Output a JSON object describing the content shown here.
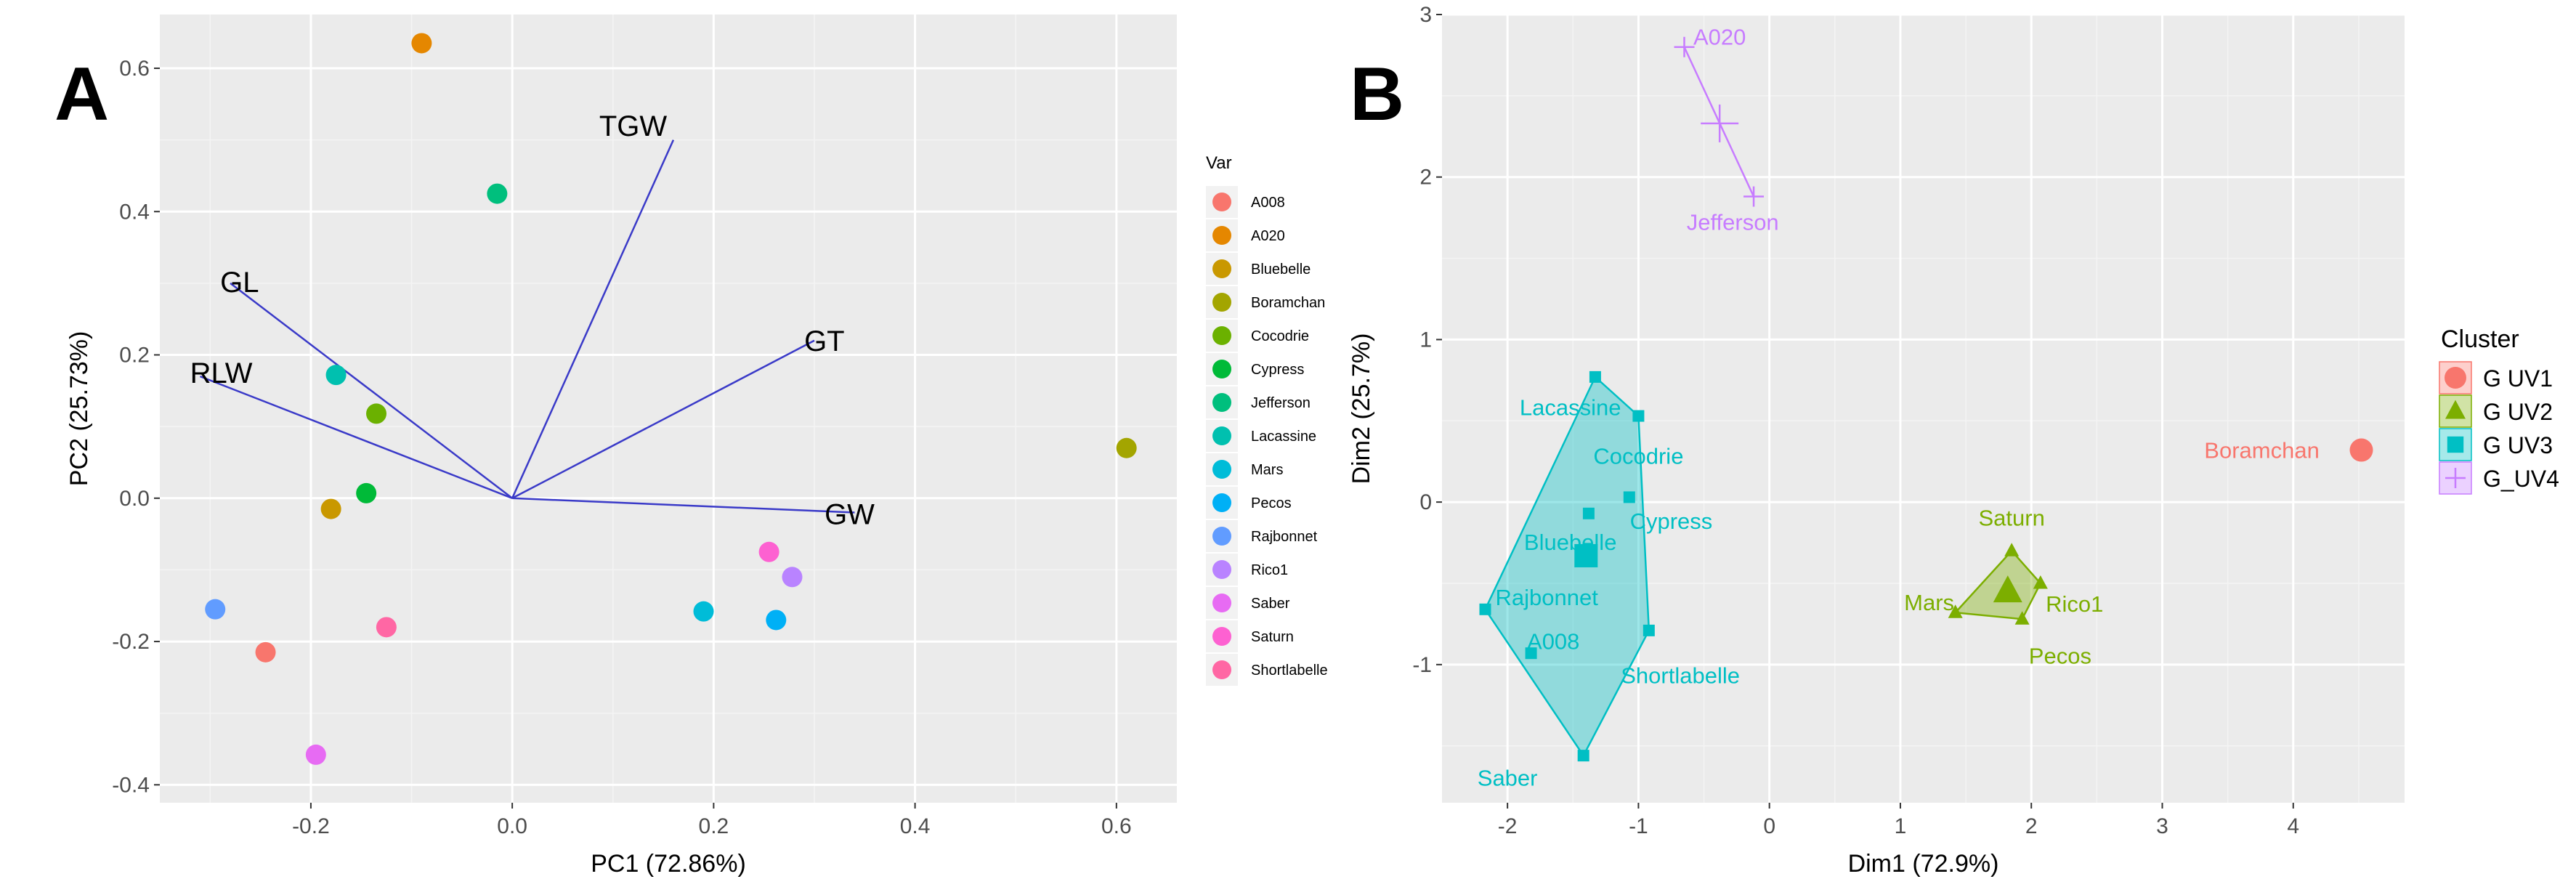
{
  "panels": {
    "a": "A",
    "b": "B"
  },
  "colors": {
    "panel_bg": "#ebebeb",
    "grid_major": "#ffffff",
    "arrow": "#3a3ac8",
    "cluster": {
      "G UV1": "#f8766d",
      "G UV2": "#7cae00",
      "G UV3": "#00bfc4",
      "G_UV4": "#c77cff"
    }
  },
  "chart_data": [
    {
      "type": "scatter",
      "panel": "A",
      "title": "",
      "xlabel": "PC1 (72.86%)",
      "ylabel": "PC2 (25.73%)",
      "xlim": [
        -0.35,
        0.66
      ],
      "ylim": [
        -0.425,
        0.675
      ],
      "xticks": [
        -0.2,
        0.0,
        0.2,
        0.4,
        0.6
      ],
      "xtick_labels": [
        "-0.2",
        "0.0",
        "0.2",
        "0.4",
        "0.6"
      ],
      "yticks": [
        -0.4,
        -0.2,
        0.0,
        0.2,
        0.4,
        0.6
      ],
      "ytick_labels": [
        "-0.4",
        "-0.2",
        "0.0",
        "0.2",
        "0.4",
        "0.6"
      ],
      "grid": true,
      "legend": {
        "title": "Var",
        "position": "right"
      },
      "points": [
        {
          "name": "A008",
          "x": -0.245,
          "y": -0.215,
          "color": "#f8766d"
        },
        {
          "name": "A020",
          "x": -0.09,
          "y": 0.635,
          "color": "#e58700"
        },
        {
          "name": "Bluebelle",
          "x": -0.18,
          "y": -0.015,
          "color": "#c99800"
        },
        {
          "name": "Boramchan",
          "x": 0.61,
          "y": 0.07,
          "color": "#a3a500"
        },
        {
          "name": "Cocodrie",
          "x": -0.135,
          "y": 0.118,
          "color": "#6bb100"
        },
        {
          "name": "Cypress",
          "x": -0.145,
          "y": 0.007,
          "color": "#00ba38"
        },
        {
          "name": "Jefferson",
          "x": -0.015,
          "y": 0.425,
          "color": "#00bf7d"
        },
        {
          "name": "Lacassine",
          "x": -0.175,
          "y": 0.172,
          "color": "#00c0af"
        },
        {
          "name": "Mars",
          "x": 0.19,
          "y": -0.158,
          "color": "#00bcd8"
        },
        {
          "name": "Pecos",
          "x": 0.262,
          "y": -0.17,
          "color": "#00b0f6"
        },
        {
          "name": "Rajbonnet",
          "x": -0.295,
          "y": -0.155,
          "color": "#619cff"
        },
        {
          "name": "Rico1",
          "x": 0.278,
          "y": -0.11,
          "color": "#b983ff"
        },
        {
          "name": "Saber",
          "x": -0.195,
          "y": -0.358,
          "color": "#e76bf3"
        },
        {
          "name": "Saturn",
          "x": 0.255,
          "y": -0.075,
          "color": "#fd61d1"
        },
        {
          "name": "Shortlabelle",
          "x": -0.125,
          "y": -0.18,
          "color": "#ff67a4"
        }
      ],
      "vectors": [
        {
          "name": "TGW",
          "x": 0.16,
          "y": 0.5,
          "label_at": [
            0.12,
            0.52
          ]
        },
        {
          "name": "GL",
          "x": -0.28,
          "y": 0.3,
          "label_at": [
            -0.29,
            0.302
          ]
        },
        {
          "name": "GT",
          "x": 0.3,
          "y": 0.22,
          "label_at": [
            0.31,
            0.22
          ]
        },
        {
          "name": "RLW",
          "x": -0.31,
          "y": 0.17,
          "label_at": [
            -0.32,
            0.175
          ]
        },
        {
          "name": "GW",
          "x": 0.34,
          "y": -0.02,
          "label_at": [
            0.335,
            -0.022
          ]
        }
      ]
    },
    {
      "type": "scatter",
      "panel": "B",
      "title": "",
      "xlabel": "Dim1 (72.9%)",
      "ylabel": "Dim2 (25.7%)",
      "xlim": [
        -2.5,
        4.85
      ],
      "ylim": [
        -1.85,
        3.0
      ],
      "xticks": [
        -2,
        -1,
        0,
        1,
        2,
        3,
        4
      ],
      "xtick_labels": [
        "-2",
        "-1",
        "0",
        "1",
        "2",
        "3",
        "4"
      ],
      "yticks": [
        -1,
        0,
        1,
        2,
        3
      ],
      "ytick_labels": [
        "-1",
        "0",
        "1",
        "2",
        "3"
      ],
      "grid": true,
      "legend": {
        "title": "Cluster",
        "position": "right",
        "items": [
          "G UV1",
          "G UV2",
          "G UV3",
          "G_UV4"
        ],
        "key_glyph": "a"
      },
      "clusters": [
        {
          "name": "G UV1",
          "shape": "circle",
          "points": [
            {
              "name": "Boramchan",
              "x": 4.52,
              "y": 0.32
            }
          ],
          "center": [
            4.52,
            0.32
          ],
          "label_pos": [
            4.2,
            0.32
          ]
        },
        {
          "name": "G UV2",
          "shape": "triangle",
          "points": [
            {
              "name": "Saturn",
              "x": 1.85,
              "y": -0.3
            },
            {
              "name": "Mars",
              "x": 1.42,
              "y": -0.68
            },
            {
              "name": "Rico1",
              "x": 2.07,
              "y": -0.5
            },
            {
              "name": "Pecos",
              "x": 1.93,
              "y": -0.72
            }
          ],
          "hull": [
            [
              1.42,
              -0.68
            ],
            [
              1.85,
              -0.3
            ],
            [
              2.07,
              -0.5
            ],
            [
              1.93,
              -0.72
            ]
          ],
          "center": [
            1.82,
            -0.55
          ],
          "labels": [
            {
              "text": "Saturn",
              "x": 1.85,
              "y": -0.1
            },
            {
              "text": "Mars",
              "x": 1.22,
              "y": -0.62
            },
            {
              "text": "Rico1",
              "x": 2.33,
              "y": -0.63
            },
            {
              "text": "Pecos",
              "x": 2.22,
              "y": -0.95
            }
          ]
        },
        {
          "name": "G UV3",
          "shape": "square",
          "points": [
            {
              "name": "Lacassine",
              "x": -1.33,
              "y": 0.77
            },
            {
              "name": "Cocodrie",
              "x": -1.0,
              "y": 0.53
            },
            {
              "name": "Cypress",
              "x": -1.07,
              "y": 0.03
            },
            {
              "name": "Bluebelle",
              "x": -1.38,
              "y": -0.07
            },
            {
              "name": "Rajbonnet",
              "x": -2.17,
              "y": -0.66
            },
            {
              "name": "A008",
              "x": -1.82,
              "y": -0.93
            },
            {
              "name": "Shortlabelle",
              "x": -0.92,
              "y": -0.79
            },
            {
              "name": "Saber",
              "x": -1.42,
              "y": -1.56
            }
          ],
          "hull": [
            [
              -1.33,
              0.77
            ],
            [
              -1.0,
              0.53
            ],
            [
              -0.92,
              -0.79
            ],
            [
              -1.42,
              -1.56
            ],
            [
              -2.17,
              -0.66
            ]
          ],
          "center": [
            -1.4,
            -0.33
          ],
          "labels": [
            {
              "text": "Lacassine",
              "x": -1.52,
              "y": 0.58
            },
            {
              "text": "Cocodrie",
              "x": -1.0,
              "y": 0.28
            },
            {
              "text": "Cypress",
              "x": -0.75,
              "y": -0.12
            },
            {
              "text": "Bluebelle",
              "x": -1.52,
              "y": -0.25
            },
            {
              "text": "Rajbonnet",
              "x": -1.7,
              "y": -0.59
            },
            {
              "text": "A008",
              "x": -1.65,
              "y": -0.86
            },
            {
              "text": "Shortlabelle",
              "x": -0.68,
              "y": -1.07
            },
            {
              "text": "Saber",
              "x": -2.0,
              "y": -1.7
            }
          ]
        },
        {
          "name": "G_UV4",
          "shape": "cross",
          "points": [
            {
              "name": "A020",
              "x": -0.65,
              "y": 2.8
            },
            {
              "name": "Jefferson",
              "x": -0.12,
              "y": 1.88
            }
          ],
          "hull": [
            [
              -0.65,
              2.8
            ],
            [
              -0.12,
              1.88
            ]
          ],
          "center": [
            -0.38,
            2.33
          ],
          "labels": [
            {
              "text": "A020",
              "x": -0.38,
              "y": 2.86
            },
            {
              "text": "Jefferson",
              "x": -0.28,
              "y": 1.72
            }
          ]
        }
      ]
    }
  ]
}
